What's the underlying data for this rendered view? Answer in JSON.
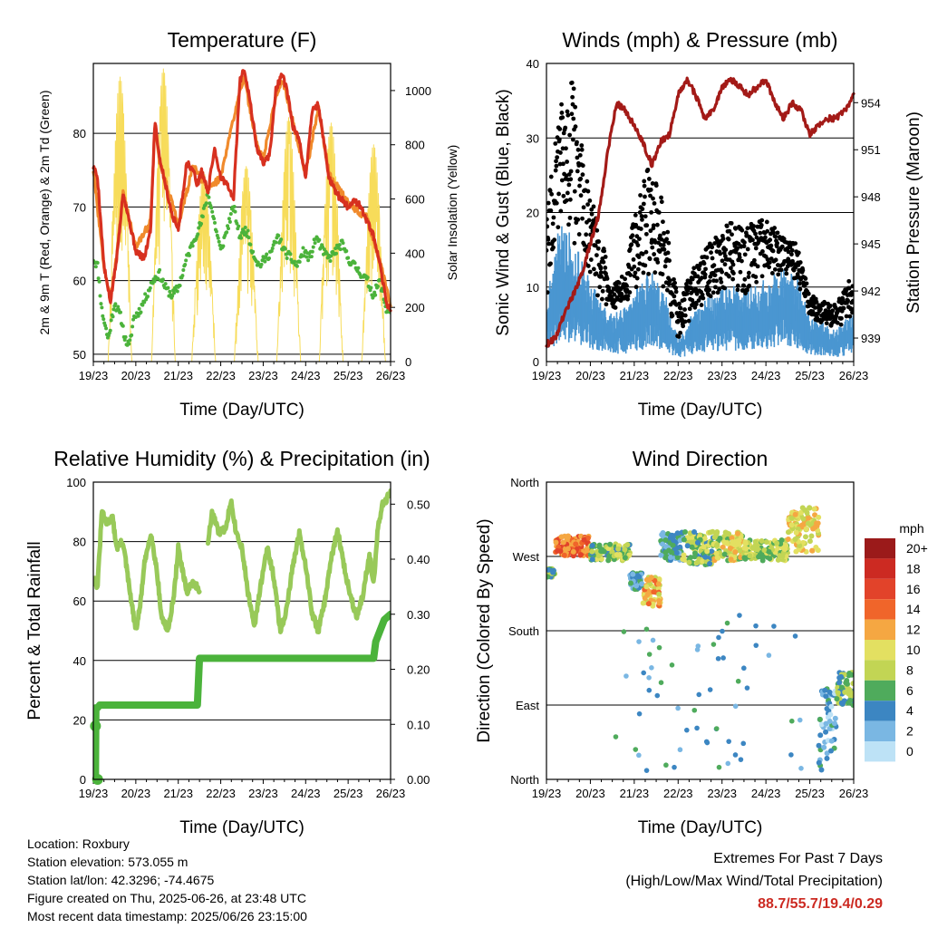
{
  "chart_data": [
    {
      "type": "line",
      "title": "Temperature (F)",
      "xlabel": "Time (Day/UTC)",
      "ylabel": "2m & 9m T (Red, Orange) & 2m Td (Green)",
      "y2label": "Solar Insolation (Yellow)",
      "x_ticks": [
        "19/23",
        "20/23",
        "21/23",
        "22/23",
        "23/23",
        "24/23",
        "25/23",
        "26/23"
      ],
      "xlim": [
        0,
        7
      ],
      "y_ticks": [
        50,
        60,
        70,
        80
      ],
      "ylim": [
        49,
        89.5
      ],
      "y2_ticks": [
        0,
        200,
        400,
        600,
        800,
        1000
      ],
      "y2lim": [
        0,
        1100
      ],
      "grid": "horizontal",
      "colors": {
        "t2m": "#d7301f",
        "t9m": "#f08a2c",
        "td2m": "#4bb33b",
        "solar": "#f7dc5a"
      },
      "series": [
        {
          "key": "t2m",
          "x": [
            0,
            0.1,
            0.25,
            0.4,
            0.55,
            0.7,
            0.85,
            1.0,
            1.2,
            1.35,
            1.45,
            1.55,
            1.7,
            1.85,
            2.0,
            2.2,
            2.35,
            2.45,
            2.55,
            2.7,
            2.85,
            3.0,
            3.15,
            3.3,
            3.45,
            3.55,
            3.7,
            3.85,
            4.0,
            4.15,
            4.3,
            4.45,
            4.55,
            4.7,
            4.85,
            5.0,
            5.15,
            5.3,
            5.45,
            5.55,
            5.7,
            5.85,
            6.0,
            6.15,
            6.3,
            6.45,
            6.6,
            6.75,
            6.9,
            7.0
          ],
          "y": [
            75.5,
            74,
            62,
            57,
            63,
            72,
            68,
            64,
            63,
            67,
            82,
            77,
            73,
            69,
            67,
            76,
            75,
            73,
            75,
            72,
            78,
            74,
            73,
            71,
            87,
            89,
            84,
            78,
            76,
            77,
            86,
            88,
            86,
            81,
            79,
            74,
            83,
            84,
            78,
            74,
            72,
            71,
            70,
            71,
            70,
            68,
            66,
            62,
            57,
            56
          ]
        },
        {
          "key": "t9m",
          "x": [
            0,
            0.25,
            0.4,
            0.55,
            0.7,
            1.0,
            1.35,
            1.45,
            1.55,
            2.0,
            2.35,
            2.7,
            3.0,
            3.45,
            3.55,
            3.85,
            4.0,
            4.3,
            4.45,
            4.7,
            5.0,
            5.3,
            5.55,
            6.0,
            6.45,
            6.75,
            7.0
          ],
          "y": [
            75,
            62,
            57.5,
            63.5,
            72,
            64.5,
            68,
            81,
            76.5,
            67.5,
            75.5,
            72.5,
            74,
            86,
            87.5,
            78.5,
            76.5,
            85,
            87.5,
            81.5,
            74.5,
            83.5,
            74.5,
            70.5,
            68.5,
            62.5,
            56.5
          ]
        },
        {
          "key": "td2m",
          "x": [
            0,
            0.1,
            0.2,
            0.35,
            0.5,
            0.65,
            0.75,
            0.85,
            0.95,
            1.1,
            1.25,
            1.4,
            1.55,
            1.7,
            1.85,
            2.0,
            2.2,
            2.4,
            2.55,
            2.7,
            2.85,
            3.0,
            3.15,
            3.3,
            3.45,
            3.6,
            3.75,
            3.9,
            4.05,
            4.2,
            4.35,
            4.5,
            4.65,
            4.8,
            4.95,
            5.1,
            5.25,
            5.4,
            5.55,
            5.7,
            5.85,
            6.0,
            6.15,
            6.3,
            6.45,
            6.6,
            6.75,
            6.9,
            7.0
          ],
          "y": [
            63,
            62,
            56,
            52,
            57,
            55,
            52,
            51,
            55,
            56,
            58,
            60,
            61,
            59,
            58,
            59,
            63,
            66,
            68,
            72,
            68,
            64,
            67,
            70,
            66,
            67,
            64,
            62,
            63,
            64,
            66,
            64,
            63,
            62,
            64,
            63,
            66,
            64,
            63,
            64,
            65,
            63,
            62,
            61,
            60,
            58,
            60,
            56,
            56
          ]
        },
        {
          "key": "solar",
          "peak_x": [
            0.63,
            1.65,
            2.6,
            3.6,
            4.6,
            5.6,
            6.6
          ],
          "peak_y": [
            1050,
            1080,
            700,
            720,
            900,
            880,
            800
          ]
        }
      ]
    },
    {
      "type": "scatter",
      "title": "Winds (mph) & Pressure (mb)",
      "xlabel": "Time (Day/UTC)",
      "ylabel": "Sonic Wind & Gust (Blue, Black)",
      "y2label": "Station Pressure (Maroon)",
      "x_ticks": [
        "19/23",
        "20/23",
        "21/23",
        "22/23",
        "23/23",
        "24/23",
        "25/23",
        "26/23"
      ],
      "xlim": [
        0,
        7
      ],
      "y_ticks": [
        0,
        10,
        20,
        30,
        40
      ],
      "ylim": [
        0,
        40
      ],
      "y2_ticks": [
        939,
        942,
        945,
        948,
        951,
        954
      ],
      "y2lim": [
        937.5,
        956.5
      ],
      "grid": "horizontal",
      "colors": {
        "wind": "#4a96d1",
        "gust": "#000000",
        "pressure": "#a31a17"
      },
      "wind_envelope": {
        "x": [
          0,
          0.3,
          0.6,
          0.9,
          1.2,
          1.5,
          1.8,
          2.1,
          2.4,
          2.7,
          3.0,
          3.3,
          3.6,
          3.9,
          4.2,
          4.5,
          4.8,
          5.1,
          5.4,
          5.7,
          6.0,
          6.3,
          6.6,
          6.9,
          7.0
        ],
        "y": [
          8,
          18,
          16,
          12,
          8,
          6,
          7,
          10,
          12,
          9,
          3,
          6,
          8,
          9,
          10,
          9,
          10,
          11,
          12,
          11,
          6,
          5,
          4,
          6,
          6
        ]
      },
      "gust_envelope": {
        "x": [
          0,
          0.3,
          0.6,
          0.9,
          1.2,
          1.5,
          1.8,
          2.1,
          2.4,
          2.7,
          3.0,
          3.3,
          3.6,
          3.9,
          4.2,
          4.5,
          4.8,
          5.1,
          5.4,
          5.7,
          6.0,
          6.3,
          6.6,
          6.9,
          7.0
        ],
        "y": [
          20,
          34,
          38,
          25,
          18,
          10,
          12,
          24,
          27,
          20,
          8,
          12,
          15,
          17,
          19,
          18,
          19,
          19,
          17,
          16,
          9,
          8,
          8,
          11,
          10
        ]
      },
      "pressure": {
        "x": [
          0,
          0.2,
          0.4,
          0.6,
          0.8,
          1.0,
          1.2,
          1.4,
          1.6,
          1.8,
          2.0,
          2.2,
          2.4,
          2.6,
          2.8,
          3.0,
          3.2,
          3.4,
          3.6,
          3.8,
          4.0,
          4.2,
          4.4,
          4.6,
          4.8,
          5.0,
          5.2,
          5.4,
          5.6,
          5.8,
          6.0,
          6.2,
          6.4,
          6.6,
          6.8,
          7.0
        ],
        "y": [
          938.6,
          939,
          940.5,
          941.7,
          943,
          945,
          947,
          951,
          954,
          953.5,
          952.5,
          951.5,
          950,
          951.5,
          952,
          954.5,
          955.5,
          954.5,
          953,
          953.5,
          955,
          955.5,
          955,
          954.5,
          955,
          955.5,
          954,
          953,
          954,
          953.5,
          952,
          952.5,
          953,
          953,
          953.5,
          954.5
        ]
      }
    },
    {
      "type": "line",
      "title": "Relative Humidity (%) & Precipitation (in)",
      "xlabel": "Time (Day/UTC)",
      "ylabel": "Percent & Total Rainfall",
      "x_ticks": [
        "19/23",
        "20/23",
        "21/23",
        "22/23",
        "23/23",
        "24/23",
        "25/23",
        "26/23"
      ],
      "xlim": [
        0,
        7
      ],
      "y_ticks": [
        0,
        20,
        40,
        60,
        80,
        100
      ],
      "ylim": [
        0,
        100
      ],
      "y2_ticks": [
        "0.00",
        "0.10",
        "0.20",
        "0.30",
        "0.40",
        "0.50"
      ],
      "y2lim": [
        0,
        0.54
      ],
      "grid": "horizontal",
      "colors": {
        "rh": "#98c959",
        "precip": "#4bb33b"
      },
      "series": [
        {
          "key": "rh",
          "x": [
            0,
            0.1,
            0.2,
            0.3,
            0.45,
            0.55,
            0.7,
            0.85,
            1.0,
            1.1,
            1.2,
            1.35,
            1.5,
            1.6,
            1.75,
            1.9,
            2.0,
            2.1,
            2.2,
            2.35,
            2.5
          ],
          "y": [
            68,
            65,
            90,
            86,
            88,
            78,
            80,
            64,
            50,
            58,
            72,
            83,
            70,
            55,
            50,
            62,
            78,
            70,
            63,
            66,
            64
          ]
        },
        {
          "key": "rh",
          "x": [
            2.7,
            2.8,
            2.95,
            3.1,
            3.25,
            3.35,
            3.5,
            3.65,
            3.8,
            3.95,
            4.1,
            4.25,
            4.4,
            4.55,
            4.7,
            4.85,
            5.0,
            5.15,
            5.3,
            5.45,
            5.6,
            5.75,
            5.9,
            6.05,
            6.2,
            6.35,
            6.5,
            6.6,
            6.7,
            6.8,
            6.9,
            7.0
          ],
          "y": [
            80,
            90,
            83,
            84,
            94,
            84,
            78,
            62,
            52,
            66,
            78,
            68,
            50,
            57,
            72,
            83,
            72,
            56,
            50,
            60,
            74,
            84,
            72,
            62,
            55,
            62,
            76,
            66,
            84,
            92,
            94,
            97
          ]
        },
        {
          "key": "precip",
          "x": [
            0,
            0.05,
            0.06,
            0.1,
            0.15,
            0.2,
            2.45,
            2.5,
            2.55,
            6.6,
            6.65,
            6.75,
            6.85,
            7.0
          ],
          "y": [
            0,
            0,
            0.13,
            0.13,
            0.135,
            0.135,
            0.135,
            0.22,
            0.22,
            0.22,
            0.25,
            0.27,
            0.29,
            0.3
          ]
        }
      ]
    },
    {
      "type": "scatter",
      "title": "Wind Direction",
      "xlabel": "Time (Day/UTC)",
      "ylabel": "Direction (Colored By Speed)",
      "x_ticks": [
        "19/23",
        "20/23",
        "21/23",
        "22/23",
        "23/23",
        "24/23",
        "25/23",
        "26/23"
      ],
      "xlim": [
        0,
        7
      ],
      "y_ticks": [
        "North",
        "East",
        "South",
        "West",
        "North"
      ],
      "ylim": [
        0,
        360
      ],
      "grid": "horizontal",
      "legend_title": "mph",
      "legend_labels": [
        "20+",
        "18",
        "16",
        "14",
        "12",
        "10",
        "8",
        "6",
        "4",
        "2",
        "0"
      ],
      "legend_colors": [
        "#9b1a1a",
        "#cc2a22",
        "#e2432a",
        "#f0652a",
        "#f5a742",
        "#e3e061",
        "#c2d554",
        "#4fab5c",
        "#3c86c2",
        "#7ab7e3",
        "#bde2f6"
      ],
      "clusters": [
        {
          "x": [
            0,
            0.2
          ],
          "dir": [
            245,
            255
          ],
          "speed": 6
        },
        {
          "x": [
            0.2,
            1.0
          ],
          "dir": [
            270,
            295
          ],
          "speed": 14
        },
        {
          "x": [
            1.0,
            1.9
          ],
          "dir": [
            265,
            285
          ],
          "speed": 7
        },
        {
          "x": [
            1.9,
            2.2
          ],
          "dir": [
            230,
            250
          ],
          "speed": 4
        },
        {
          "x": [
            2.2,
            2.6
          ],
          "dir": [
            210,
            245
          ],
          "speed": 11
        },
        {
          "x": [
            2.6,
            3.1
          ],
          "dir": [
            265,
            300
          ],
          "speed": 4
        },
        {
          "x": [
            3.1,
            3.8
          ],
          "dir": [
            260,
            300
          ],
          "speed": 7
        },
        {
          "x": [
            3.8,
            4.5
          ],
          "dir": [
            265,
            300
          ],
          "speed": 9
        },
        {
          "x": [
            4.5,
            5.5
          ],
          "dir": [
            265,
            290
          ],
          "speed": 8
        },
        {
          "x": [
            5.5,
            6.2
          ],
          "dir": [
            275,
            330
          ],
          "speed": 10
        },
        {
          "x": [
            6.2,
            6.6
          ],
          "dir": [
            10,
            110
          ],
          "speed": 3
        },
        {
          "x": [
            6.6,
            7.0
          ],
          "dir": [
            90,
            130
          ],
          "speed": 6
        }
      ]
    }
  ],
  "info": {
    "location": "Location: Roxbury",
    "elevation": "Station elevation: 573.055 m",
    "latlon": "Station lat/lon: 42.3296; -74.4675",
    "created": "Figure created on Thu, 2025-06-26, at 23:48 UTC",
    "recent": "Most recent data timestamp: 2025/06/26 23:15:00"
  },
  "extremes": {
    "title": "Extremes For Past 7 Days",
    "subtitle": "(High/Low/Max Wind/Total Precipitation)",
    "values": "88.7/55.7/19.4/0.29"
  }
}
